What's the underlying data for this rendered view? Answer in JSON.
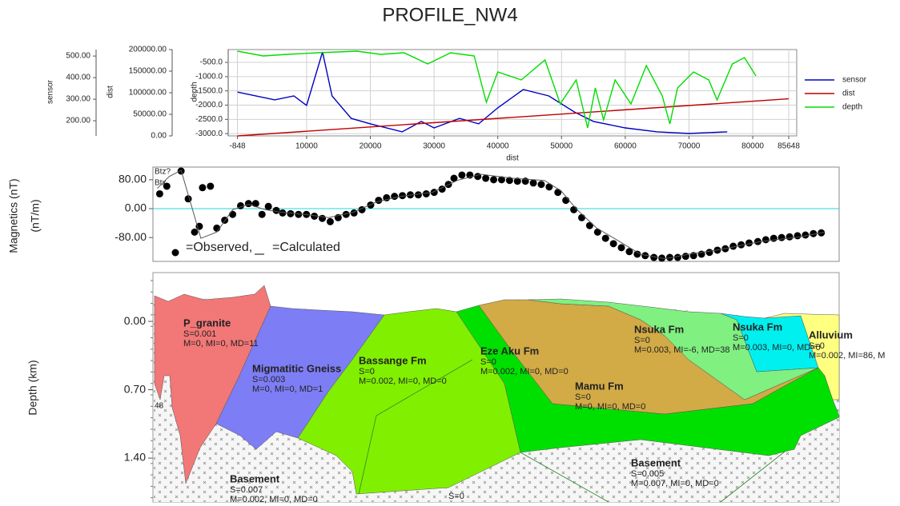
{
  "title": "PROFILE_NW4",
  "chart_data": [
    {
      "type": "line",
      "xlabel": "dist",
      "xlim": [
        -2300,
        86900
      ],
      "xticks": [
        -848,
        10000,
        20000,
        30000,
        40000,
        50000,
        60000,
        70000,
        80000,
        85648
      ],
      "ylabel": "sensor",
      "ylim": [
        130,
        530
      ],
      "yticks": [
        {
          "value": 200,
          "label": "200.00"
        },
        {
          "value": 300,
          "label": "300.00"
        },
        {
          "value": 400,
          "label": "400.00"
        },
        {
          "value": 500,
          "label": "500.00"
        }
      ],
      "y2label": "dist",
      "y2lim": [
        0,
        200000
      ],
      "y2ticks": [
        {
          "value": 0,
          "label": "0.00"
        },
        {
          "value": 50000,
          "label": "50000.00"
        },
        {
          "value": 100000,
          "label": "100000.00"
        },
        {
          "value": 150000,
          "label": "150000.00"
        },
        {
          "value": 200000,
          "label": "200000.00"
        }
      ],
      "y3label": "depth",
      "y3lim": [
        -3080,
        -50
      ],
      "y3ticks": [
        {
          "value": -500,
          "label": "-500.0"
        },
        {
          "value": -1000,
          "label": "-1000.0"
        },
        {
          "value": -1500,
          "label": "-1500.0"
        },
        {
          "value": -2000,
          "label": "-2000.0"
        },
        {
          "value": -2500,
          "label": "-2500.0"
        },
        {
          "value": -3000,
          "label": "-3000.0"
        }
      ],
      "grid": true,
      "legend": "right",
      "series": [
        {
          "name": "sensor",
          "color": "#0000c0",
          "axis": "y",
          "x": [
            -848,
            5000,
            8000,
            10000,
            12500,
            14000,
            17000,
            20000,
            25000,
            28000,
            30000,
            34000,
            37000,
            40000,
            44000,
            48000,
            52000,
            55000,
            60000,
            65000,
            70000,
            76000
          ],
          "values": [
            333,
            297,
            315,
            271,
            519,
            315,
            211,
            186,
            149,
            197,
            167,
            211,
            186,
            260,
            345,
            315,
            241,
            197,
            167,
            149,
            141,
            149
          ]
        },
        {
          "name": "dist",
          "color": "#c00000",
          "axis": "y2",
          "x": [
            -848,
            85648
          ],
          "values": [
            0,
            86000
          ]
        },
        {
          "name": "depth",
          "color": "#00dd00",
          "axis": "y3",
          "x": [
            -848,
            3200,
            6900,
            11800,
            17900,
            21600,
            25300,
            29000,
            32600,
            36300,
            38200,
            40000,
            43700,
            47400,
            49800,
            52300,
            54100,
            55300,
            56600,
            58400,
            60900,
            63300,
            65800,
            67000,
            68200,
            70700,
            73100,
            74400,
            76800,
            78700,
            80500
          ],
          "values": [
            -106,
            -274,
            -218,
            -162,
            -106,
            -218,
            -162,
            -555,
            -162,
            -274,
            -1902,
            -836,
            -1116,
            -415,
            -1958,
            -1116,
            -2800,
            -1397,
            -2519,
            -1116,
            -1958,
            -611,
            -1677,
            -2659,
            -1397,
            -836,
            -1116,
            -1818,
            -555,
            -330,
            -976
          ]
        }
      ]
    },
    {
      "type": "scatter",
      "ylabel": "Magnetics (nT)",
      "ylabel2": "(nT/m)",
      "xlim": [
        -848,
        85648
      ],
      "ylim": [
        -146,
        115
      ],
      "yticks": [
        {
          "value": -80,
          "label": "-80.00"
        },
        {
          "value": 0,
          "label": "0.00"
        },
        {
          "value": 80,
          "label": "80.00"
        }
      ],
      "reference_color": "#20d8d8",
      "annotations": [
        {
          "text": "Btz?",
          "color": "#33aa33"
        },
        {
          "text": "Btx",
          "color": "#20e0e0"
        }
      ],
      "series": [
        {
          "name": "=Observed,",
          "color": "#000000",
          "style": "dots",
          "x": [
            0,
            900,
            2700,
            3600,
            4400,
            5000,
            5400,
            6400,
            7200,
            8200,
            9200,
            10200,
            11200,
            12100,
            12900,
            13700,
            14700,
            15500,
            16500,
            17500,
            18500,
            19500,
            20500,
            21500,
            22500,
            23500,
            24500,
            25500,
            26600,
            27600,
            28600,
            29600,
            30600,
            31600,
            32600,
            33600,
            34600,
            35600,
            36400,
            37100,
            38100,
            39100,
            40100,
            41100,
            42100,
            43100,
            44100,
            45100,
            46100,
            47100,
            48100,
            49100,
            50200,
            51200,
            52200,
            53200,
            54200,
            55200,
            56200,
            57200,
            58200,
            59200,
            60200,
            61200,
            62300,
            63300,
            64300,
            65300,
            66300,
            67300,
            68300,
            69300,
            70300,
            71300,
            72300,
            73300,
            74300,
            75400,
            76400,
            77400,
            78400,
            79400,
            80400,
            81400,
            82400,
            83400
          ],
          "values": [
            41,
            62,
            104,
            27,
            -65,
            -49,
            58,
            62,
            -54,
            -32,
            -16,
            8,
            14,
            14,
            -16,
            6,
            -5,
            -12,
            -14,
            -16,
            -16,
            -21,
            -27,
            -36,
            -25,
            -16,
            -12,
            -3,
            10,
            23,
            30,
            34,
            36,
            38,
            38,
            41,
            45,
            54,
            67,
            84,
            93,
            93,
            89,
            84,
            80,
            80,
            78,
            76,
            76,
            71,
            67,
            60,
            45,
            23,
            -3,
            -25,
            -47,
            -65,
            -82,
            -97,
            -108,
            -119,
            -126,
            -130,
            -135,
            -137,
            -135,
            -135,
            -132,
            -130,
            -126,
            -121,
            -115,
            -111,
            -104,
            -100,
            -95,
            -91,
            -86,
            -82,
            -80,
            -78,
            -75,
            -73,
            -69,
            -67
          ]
        },
        {
          "name": "=Calculated",
          "color": "#555555",
          "style": "line",
          "x": [
            -300,
            1200,
            2700,
            5200,
            7200,
            9200,
            11200,
            13300,
            15300,
            18300,
            21300,
            24400,
            27400,
            30400,
            34400,
            37500,
            40500,
            44500,
            48500,
            50600,
            52600,
            55100,
            57600,
            60600,
            63700,
            66700,
            70700,
            75800,
            80800,
            83800
          ],
          "values": [
            56,
            89,
            106,
            -82,
            -65,
            -3,
            12,
            -3,
            -10,
            -16,
            -25,
            -10,
            19,
            34,
            45,
            78,
            95,
            84,
            78,
            49,
            -3,
            -54,
            -86,
            -126,
            -139,
            -126,
            -113,
            -91,
            -78,
            -65
          ]
        }
      ]
    },
    {
      "type": "section",
      "ylabel": "Depth (km)",
      "ylim": [
        -0.5,
        1.85
      ],
      "y_inverted": true,
      "yticks": [
        {
          "value": 0,
          "label": "0.00"
        },
        {
          "value": 0.7,
          "label": "0.70"
        },
        {
          "value": 1.4,
          "label": "1.40"
        }
      ],
      "annotations": [
        "48",
        "S=0"
      ],
      "bodies": [
        {
          "name": "P_granite",
          "color": "#f27777",
          "lines": [
            "S=0.001",
            "M=0, MI=0, MD=11"
          ]
        },
        {
          "name": "Migmatitic Gneiss",
          "color": "#7d7df5",
          "lines": [
            "S=0.003",
            "M=0, MI=0, MD=1"
          ]
        },
        {
          "name": "Bassange Fm",
          "color": "#80f000",
          "lines": [
            "S=0",
            "M=0.002, MI=0, MD=0"
          ]
        },
        {
          "name": "Eze Aku  Fm",
          "color": "#00e000",
          "lines": [
            "S=0",
            "M=0.002, MI=0, MD=0"
          ]
        },
        {
          "name": "Mamu Fm",
          "color": "#d2aa46",
          "lines": [
            "S=0",
            "M=0, MI=0, MD=0"
          ]
        },
        {
          "name": "Nsuka Fm",
          "color": "#80f080",
          "lines": [
            "S=0",
            "M=0.003, MI=-6, MD=38"
          ]
        },
        {
          "name": "Nsuka Fm",
          "color": "#00f0f0",
          "lines": [
            "S=0",
            "M=0.003, MI=0, MD=0"
          ]
        },
        {
          "name": "Alluvium",
          "color": "#ffff80",
          "lines": [
            "S=0",
            "M=0.002, MI=86, M"
          ]
        },
        {
          "name": "Basement",
          "lines": [
            "S=0.007",
            "M=0.002, MI=0, MD=0"
          ]
        },
        {
          "name": "Basement",
          "lines": [
            "S=0.005",
            "M=0.007, MI=0, MD=0"
          ]
        }
      ]
    }
  ]
}
